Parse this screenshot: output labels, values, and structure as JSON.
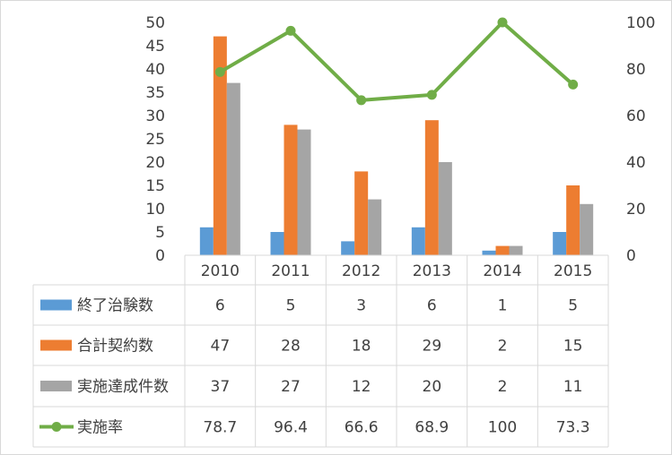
{
  "chart_data": {
    "type": "bar",
    "categories": [
      "2010",
      "2011",
      "2012",
      "2013",
      "2014",
      "2015"
    ],
    "y_left": {
      "ticks": [
        0,
        5,
        10,
        15,
        20,
        25,
        30,
        35,
        40,
        45,
        50
      ],
      "ylim": [
        0,
        50
      ]
    },
    "y_right": {
      "ticks": [
        0,
        20,
        40,
        60,
        80,
        100
      ],
      "ylim": [
        0,
        100
      ]
    },
    "series": [
      {
        "name": "終了治験数",
        "kind": "bar",
        "axis": "left",
        "color": "#5B9BD5",
        "values": [
          6,
          5,
          3,
          6,
          1,
          5
        ]
      },
      {
        "name": "合計契約数",
        "kind": "bar",
        "axis": "left",
        "color": "#ED7D31",
        "values": [
          47,
          28,
          18,
          29,
          2,
          15
        ]
      },
      {
        "name": "実施達成件数",
        "kind": "bar",
        "axis": "left",
        "color": "#A5A5A5",
        "values": [
          37,
          27,
          12,
          20,
          2,
          11
        ]
      },
      {
        "name": "実施率",
        "kind": "line",
        "axis": "right",
        "color": "#70AD47",
        "values": [
          78.7,
          96.4,
          66.6,
          68.9,
          100,
          73.3
        ]
      }
    ],
    "data_table": {
      "rows": [
        [
          "6",
          "5",
          "3",
          "6",
          "1",
          "5"
        ],
        [
          "47",
          "28",
          "18",
          "29",
          "2",
          "15"
        ],
        [
          "37",
          "27",
          "12",
          "20",
          "2",
          "11"
        ],
        [
          "78.7",
          "96.4",
          "66.6",
          "68.9",
          "100",
          "73.3"
        ]
      ]
    },
    "grid": false,
    "legend": "data-table-left"
  }
}
